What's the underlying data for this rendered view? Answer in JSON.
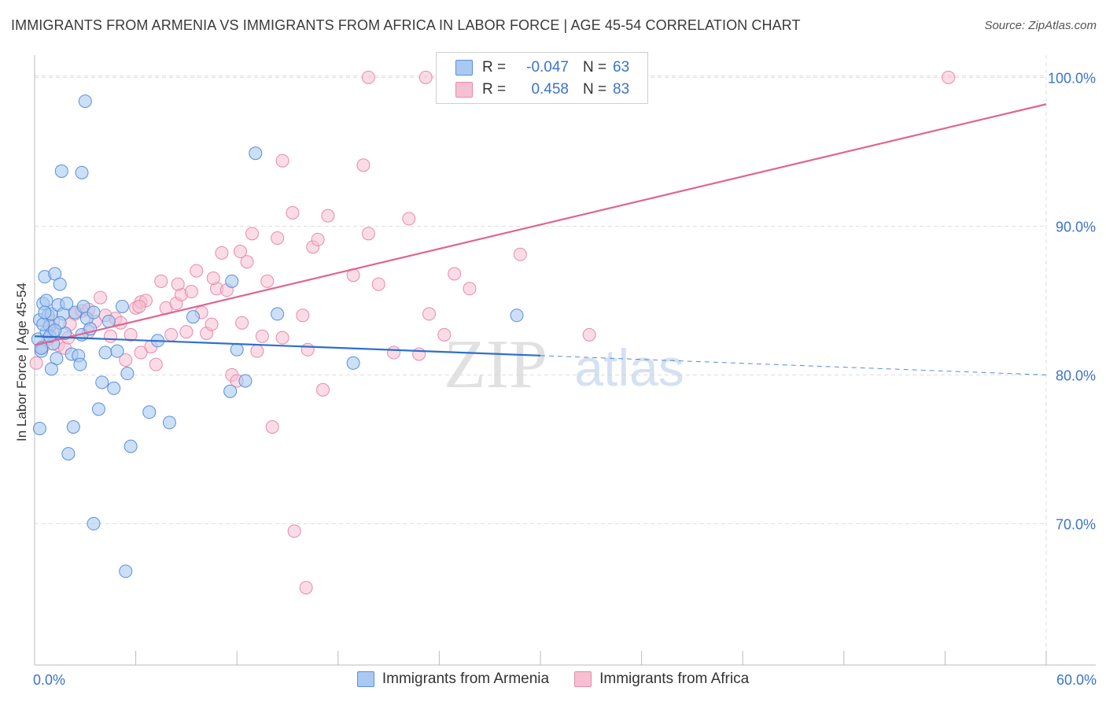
{
  "title": "IMMIGRANTS FROM ARMENIA VS IMMIGRANTS FROM AFRICA IN LABOR FORCE | AGE 45-54 CORRELATION CHART",
  "source": "Source: ZipAtlas.com",
  "watermark": {
    "zip": "ZIP",
    "atlas": "atlas"
  },
  "colors": {
    "blue_fill": "#a9c9f2",
    "blue_stroke": "#5a8fdc",
    "blue_line": "#2f6fcc",
    "pink_fill": "#f7c0d2",
    "pink_stroke": "#e68aaa",
    "pink_line": "#e0648f",
    "axis_text": "#3b74c9",
    "grid": "#dddddd"
  },
  "legend_top": {
    "rows": [
      {
        "r_label": "R =",
        "r_value": "-0.047",
        "n_label": "N =",
        "n_value": "63"
      },
      {
        "r_label": "R =",
        "r_value": "0.458",
        "n_label": "N =",
        "n_value": "83"
      }
    ]
  },
  "chart_data": {
    "type": "scatter",
    "title": "IMMIGRANTS FROM ARMENIA VS IMMIGRANTS FROM AFRICA IN LABOR FORCE | AGE 45-54 CORRELATION CHART",
    "xlabel": "",
    "ylabel": "In Labor Force | Age 45-54",
    "xlim": [
      0,
      60
    ],
    "ylim": [
      60.5,
      101.5
    ],
    "x_tick_labels": [
      "0.0%",
      "60.0%"
    ],
    "y_tick_values": [
      70,
      80,
      90,
      100
    ],
    "y_tick_labels": [
      "70.0%",
      "80.0%",
      "90.0%",
      "100.0%"
    ],
    "grid": true,
    "legend_placement": "bottom",
    "series": [
      {
        "name": "Immigrants from Armenia",
        "color": "#a9c9f2",
        "r": -0.047,
        "n": 63,
        "trend": {
          "x": [
            0,
            30
          ],
          "y": [
            82.6,
            81.3
          ],
          "dashed_to_x": 60,
          "dashed_to_y": 80.0
        },
        "points": [
          [
            0.2,
            82.4
          ],
          [
            0.3,
            83.7
          ],
          [
            0.4,
            81.6
          ],
          [
            0.5,
            84.8
          ],
          [
            0.6,
            86.6
          ],
          [
            0.7,
            82.9
          ],
          [
            0.8,
            84.0
          ],
          [
            0.9,
            83.3
          ],
          [
            1.0,
            84.1
          ],
          [
            1.1,
            82.1
          ],
          [
            1.2,
            86.8
          ],
          [
            1.3,
            81.1
          ],
          [
            1.4,
            84.7
          ],
          [
            1.5,
            86.1
          ],
          [
            1.7,
            84.1
          ],
          [
            1.8,
            82.8
          ],
          [
            1.9,
            84.8
          ],
          [
            2.0,
            74.7
          ],
          [
            2.2,
            81.4
          ],
          [
            2.3,
            76.5
          ],
          [
            2.4,
            84.2
          ],
          [
            2.6,
            81.3
          ],
          [
            2.7,
            80.7
          ],
          [
            2.8,
            82.7
          ],
          [
            2.9,
            84.6
          ],
          [
            3.0,
            98.4
          ],
          [
            3.1,
            83.8
          ],
          [
            3.3,
            83.1
          ],
          [
            3.5,
            84.2
          ],
          [
            3.8,
            77.7
          ],
          [
            4.0,
            79.5
          ],
          [
            4.2,
            81.5
          ],
          [
            4.4,
            83.6
          ],
          [
            4.7,
            79.1
          ],
          [
            4.9,
            81.6
          ],
          [
            5.2,
            84.6
          ],
          [
            5.5,
            80.1
          ],
          [
            5.7,
            75.2
          ],
          [
            6.8,
            77.5
          ],
          [
            7.3,
            82.3
          ],
          [
            8.0,
            76.8
          ],
          [
            9.4,
            83.9
          ],
          [
            11.6,
            78.9
          ],
          [
            11.7,
            86.3
          ],
          [
            12.0,
            81.7
          ],
          [
            12.5,
            79.6
          ],
          [
            13.1,
            94.9
          ],
          [
            14.4,
            84.1
          ],
          [
            18.9,
            80.8
          ],
          [
            28.6,
            84.0
          ],
          [
            0.5,
            83.4
          ],
          [
            1.0,
            80.4
          ],
          [
            2.8,
            93.6
          ],
          [
            1.6,
            93.7
          ],
          [
            0.3,
            76.4
          ],
          [
            3.5,
            70.0
          ],
          [
            5.4,
            66.8
          ],
          [
            1.5,
            83.5
          ],
          [
            0.7,
            85.0
          ],
          [
            0.4,
            81.8
          ],
          [
            0.9,
            82.6
          ],
          [
            1.2,
            83.0
          ],
          [
            0.6,
            84.2
          ]
        ]
      },
      {
        "name": "Immigrants from Africa",
        "color": "#f7c0d2",
        "r": 0.458,
        "n": 83,
        "trend": {
          "x": [
            0,
            60
          ],
          "y": [
            82.0,
            98.2
          ]
        },
        "points": [
          [
            0.1,
            80.8
          ],
          [
            0.5,
            81.9
          ],
          [
            0.8,
            82.4
          ],
          [
            1.1,
            82.9
          ],
          [
            1.4,
            82.0
          ],
          [
            1.8,
            81.8
          ],
          [
            2.1,
            83.4
          ],
          [
            2.4,
            84.1
          ],
          [
            2.8,
            84.3
          ],
          [
            3.2,
            82.9
          ],
          [
            3.6,
            83.6
          ],
          [
            3.9,
            85.2
          ],
          [
            4.2,
            84.0
          ],
          [
            4.5,
            82.6
          ],
          [
            4.8,
            83.8
          ],
          [
            5.1,
            83.5
          ],
          [
            5.4,
            81.0
          ],
          [
            5.7,
            82.7
          ],
          [
            6.0,
            84.5
          ],
          [
            6.3,
            84.9
          ],
          [
            6.6,
            85.0
          ],
          [
            6.9,
            81.9
          ],
          [
            7.2,
            80.7
          ],
          [
            7.5,
            86.3
          ],
          [
            7.8,
            84.5
          ],
          [
            8.1,
            82.7
          ],
          [
            8.4,
            84.8
          ],
          [
            8.7,
            85.4
          ],
          [
            9.0,
            82.9
          ],
          [
            9.3,
            85.6
          ],
          [
            9.6,
            87.0
          ],
          [
            9.9,
            84.2
          ],
          [
            10.2,
            82.8
          ],
          [
            10.5,
            83.4
          ],
          [
            10.8,
            85.8
          ],
          [
            11.1,
            88.2
          ],
          [
            11.4,
            85.7
          ],
          [
            11.7,
            80.0
          ],
          [
            12.0,
            79.6
          ],
          [
            12.3,
            83.5
          ],
          [
            12.6,
            87.6
          ],
          [
            12.9,
            89.5
          ],
          [
            13.2,
            81.6
          ],
          [
            13.5,
            82.6
          ],
          [
            13.8,
            86.3
          ],
          [
            14.1,
            76.5
          ],
          [
            14.4,
            89.2
          ],
          [
            14.7,
            94.4
          ],
          [
            15.3,
            90.9
          ],
          [
            15.9,
            84.0
          ],
          [
            16.2,
            81.7
          ],
          [
            16.5,
            88.6
          ],
          [
            16.8,
            89.1
          ],
          [
            17.1,
            79.0
          ],
          [
            17.4,
            90.7
          ],
          [
            18.9,
            86.7
          ],
          [
            19.5,
            94.1
          ],
          [
            19.8,
            89.5
          ],
          [
            20.4,
            86.1
          ],
          [
            21.3,
            81.5
          ],
          [
            22.2,
            90.5
          ],
          [
            22.8,
            81.4
          ],
          [
            23.4,
            84.1
          ],
          [
            24.3,
            82.7
          ],
          [
            24.9,
            86.8
          ],
          [
            25.8,
            85.8
          ],
          [
            28.8,
            88.1
          ],
          [
            32.9,
            82.7
          ],
          [
            16.1,
            65.7
          ],
          [
            15.4,
            69.5
          ],
          [
            19.8,
            100.0
          ],
          [
            23.2,
            100.0
          ],
          [
            32.0,
            100.0
          ],
          [
            54.2,
            100.0
          ],
          [
            3.2,
            84.4
          ],
          [
            2.0,
            82.5
          ],
          [
            1.1,
            83.6
          ],
          [
            6.2,
            84.6
          ],
          [
            8.5,
            86.1
          ],
          [
            10.6,
            86.5
          ],
          [
            12.2,
            88.3
          ],
          [
            14.7,
            82.5
          ],
          [
            6.3,
            81.5
          ]
        ]
      }
    ]
  },
  "legend_bottom": [
    {
      "label": "Immigrants from Armenia"
    },
    {
      "label": "Immigrants from Africa"
    }
  ]
}
